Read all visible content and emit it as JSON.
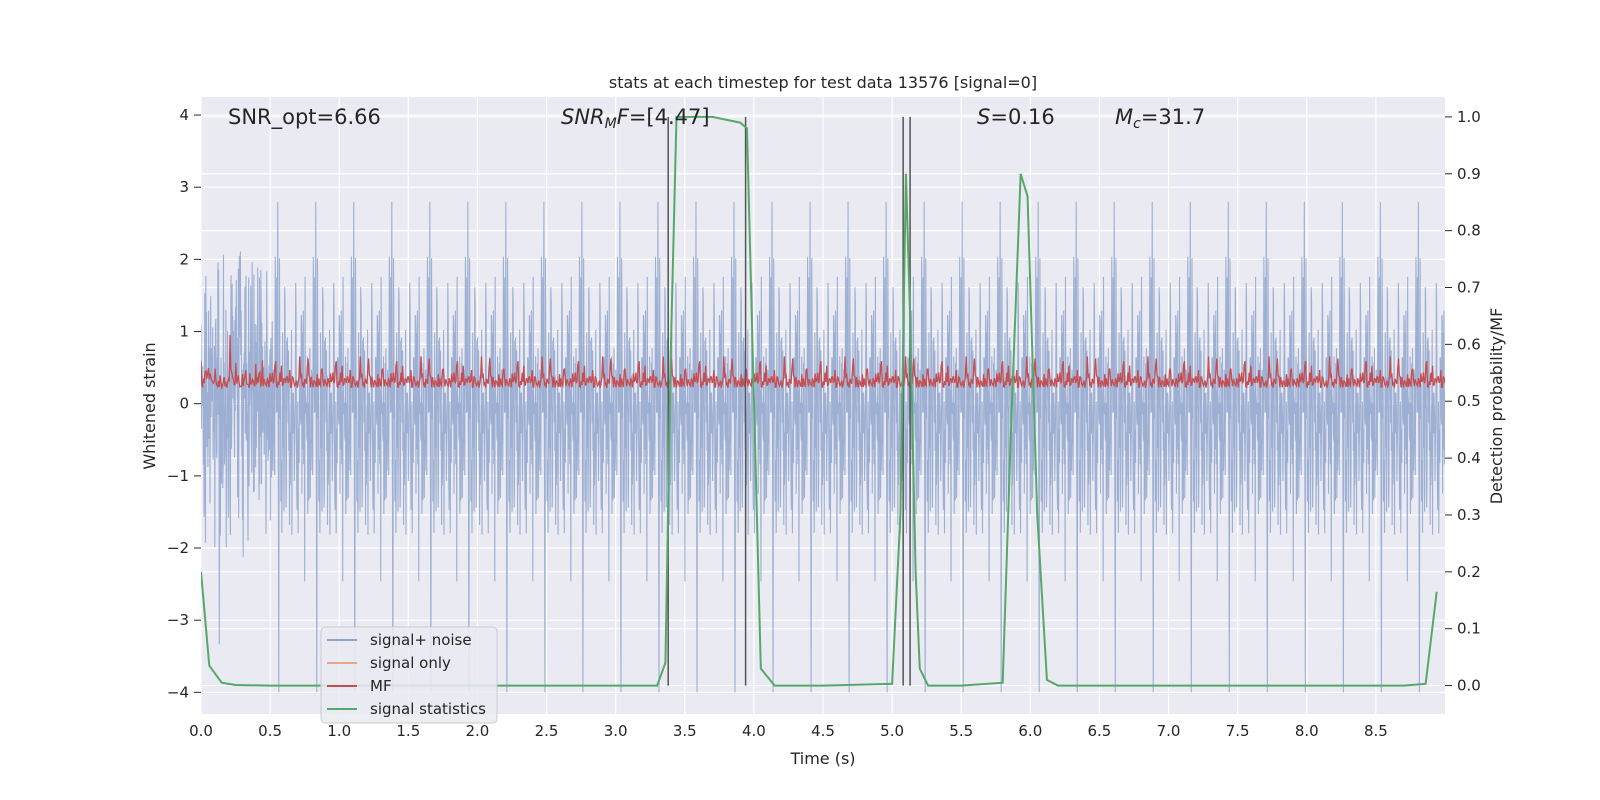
{
  "chart_data": {
    "type": "line",
    "title": "stats at each timestep for test data 13576 [signal=0]",
    "xlabel": "Time (s)",
    "ylabel": "Whitened strain",
    "y2label": "Detection probability/MF",
    "xlim": [
      0.0,
      9.0
    ],
    "ylim": [
      -4.3,
      4.25
    ],
    "y2lim": [
      -0.05,
      1.035
    ],
    "xticks": [
      "0.0",
      "0.5",
      "1.0",
      "1.5",
      "2.0",
      "2.5",
      "3.0",
      "3.5",
      "4.0",
      "4.5",
      "5.0",
      "5.5",
      "6.0",
      "6.5",
      "7.0",
      "7.5",
      "8.0",
      "8.5"
    ],
    "yticks": [
      "−4",
      "−3",
      "−2",
      "−1",
      "0",
      "1",
      "2",
      "3",
      "4"
    ],
    "y2ticks": [
      "0.0",
      "0.1",
      "0.2",
      "0.3",
      "0.4",
      "0.5",
      "0.6",
      "0.7",
      "0.8",
      "0.9",
      "1.0"
    ],
    "grid": true,
    "legend_position": "lower-left",
    "annotations": {
      "snr_opt": "SNR_opt=6.66",
      "snr_mf_italic": "SNR",
      "snr_mf_sub": "M",
      "snr_mf_rest_italic": "F",
      "snr_mf_value": "=[4.47]",
      "s_italic": "S",
      "s_value": "=0.16",
      "mc_italic": "M",
      "mc_sub": "c",
      "mc_value": "=31.7"
    },
    "series": [
      {
        "name": "signal+ noise",
        "color": "#8fa4cc",
        "axis": "left",
        "description_range": [
          -4.0,
          3.9
        ]
      },
      {
        "name": "signal only",
        "color": "#e8a58c",
        "axis": "left"
      },
      {
        "name": "MF",
        "color": "#c44e52",
        "axis": "left",
        "baseline": 0.25,
        "amplitude_range": [
          0.0,
          0.95
        ]
      },
      {
        "name": "signal statistics",
        "color": "#55a868",
        "axis": "right",
        "x": [
          0.0,
          0.06,
          0.15,
          0.25,
          0.5,
          1.0,
          2.0,
          3.0,
          3.3,
          3.36,
          3.4,
          3.44,
          3.5,
          3.7,
          3.9,
          3.95,
          4.05,
          4.15,
          4.5,
          5.0,
          5.06,
          5.1,
          5.13,
          5.17,
          5.2,
          5.26,
          5.33,
          5.5,
          5.8,
          5.86,
          5.93,
          5.98,
          6.05,
          6.12,
          6.2,
          7.0,
          8.0,
          8.7,
          8.86,
          8.94
        ],
        "y": [
          0.2,
          0.035,
          0.005,
          0.001,
          0.0,
          0.0,
          0.0,
          0.0,
          0.0,
          0.04,
          0.6,
          1.0,
          1.0,
          1.0,
          0.99,
          0.98,
          0.03,
          0.0,
          0.0,
          0.003,
          0.3,
          0.9,
          0.65,
          0.2,
          0.03,
          0.0,
          0.0,
          0.0,
          0.005,
          0.45,
          0.9,
          0.86,
          0.3,
          0.01,
          0.0,
          0.0,
          0.0,
          0.0,
          0.003,
          0.165
        ]
      }
    ],
    "vertical_lines_x": [
      3.38,
      3.94,
      5.08,
      5.13
    ]
  }
}
